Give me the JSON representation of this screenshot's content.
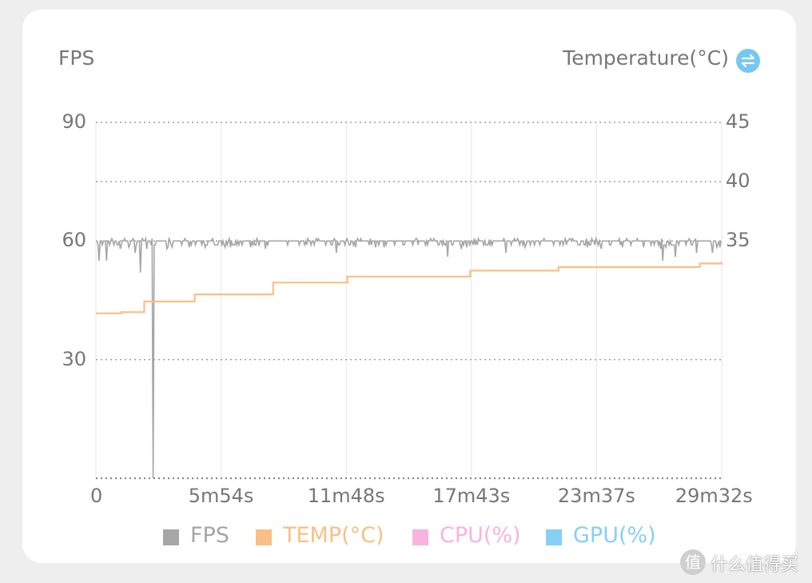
{
  "header": {
    "left_axis_title": "FPS",
    "right_axis_title": "Temperature(°C)",
    "swap_icon": "swap-vertical-arrows-icon"
  },
  "legend": [
    {
      "label": "FPS",
      "color": "#a6a6a6"
    },
    {
      "label": "TEMP(°C)",
      "color": "#f9bf85"
    },
    {
      "label": "CPU(%)",
      "color": "#f8b4df"
    },
    {
      "label": "GPU(%)",
      "color": "#86d0f5"
    }
  ],
  "watermark": {
    "logo_glyph": "值",
    "text": "什么值得买"
  },
  "chart_data": {
    "type": "line",
    "x_ticks": [
      "0",
      "5m54s",
      "11m48s",
      "17m43s",
      "23m37s",
      "29m32s"
    ],
    "x_range_seconds": [
      0,
      1772
    ],
    "y_left": {
      "label": "FPS",
      "ticks": [
        "90",
        "60",
        "30"
      ],
      "range": [
        0,
        90
      ]
    },
    "y_right": {
      "label": "Temperature(°C)",
      "ticks": [
        "45",
        "40",
        "35"
      ],
      "range": [
        15,
        45
      ]
    },
    "grid": "dashed horizontal, light vertical",
    "legend_position": "bottom",
    "series": [
      {
        "name": "FPS",
        "axis": "left",
        "color": "#a6a6a6",
        "baseline": 60,
        "dips": [
          [
            8,
            55
          ],
          [
            30,
            55
          ],
          [
            70,
            58
          ],
          [
            110,
            57
          ],
          [
            125,
            52
          ],
          [
            145,
            58
          ],
          [
            162,
            0
          ],
          [
            200,
            58
          ],
          [
            480,
            58
          ],
          [
            680,
            57
          ],
          [
            995,
            56
          ],
          [
            1035,
            58
          ],
          [
            1160,
            57
          ],
          [
            1430,
            58
          ],
          [
            1600,
            58
          ],
          [
            1605,
            55
          ],
          [
            1640,
            56
          ],
          [
            1700,
            57
          ],
          [
            1745,
            57
          ]
        ]
      },
      {
        "name": "TEMP(°C)",
        "axis": "right",
        "color": "#f9bf85",
        "x_seconds": [
          0,
          72,
          137,
          280,
          502,
          712,
          1060,
          1310,
          1710,
          1772
        ],
        "values": [
          28.9,
          29.0,
          29.9,
          30.5,
          31.5,
          32.0,
          32.5,
          32.8,
          33.1,
          33.2
        ]
      }
    ]
  }
}
